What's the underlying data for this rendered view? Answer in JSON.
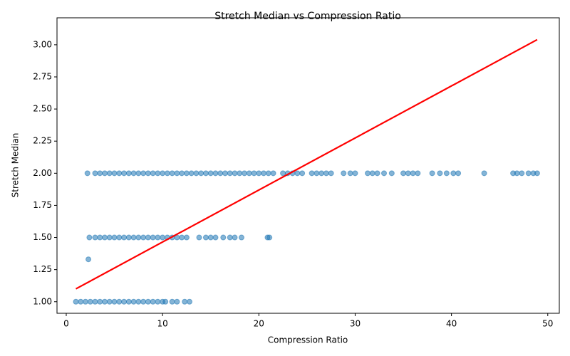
{
  "chart_data": {
    "type": "scatter",
    "title": "Stretch Median vs Compression Ratio",
    "x_label": "Compression Ratio",
    "y_label": "Stretch Median",
    "color": "#1f77b4",
    "x": [
      1,
      1.5,
      2,
      2.5,
      3,
      3.5,
      4,
      4.5,
      5,
      5.5,
      6,
      6.5,
      7,
      7.5,
      8,
      8.5,
      9,
      9.5,
      10,
      10.3,
      11,
      11.5,
      12.3,
      12.8,
      2.4,
      3,
      3.5,
      4,
      4.5,
      5,
      5.5,
      6,
      6.5,
      7,
      7.5,
      8,
      8.5,
      9,
      9.5,
      10,
      10.5,
      11,
      11.5,
      12,
      12.5,
      13.8,
      14.5,
      15,
      15.5,
      16.3,
      17,
      17.5,
      18.2,
      20.9,
      21.1,
      2.3,
      2.2,
      3,
      3.5,
      4,
      4.5,
      5,
      5.5,
      6,
      6.5,
      7,
      7.5,
      8,
      8.5,
      9,
      9.5,
      10,
      10.5,
      11,
      11.5,
      12,
      12.5,
      13,
      13.5,
      14,
      14.5,
      15,
      15.5,
      16,
      16.5,
      17,
      17.5,
      18,
      18.5,
      19,
      19.5,
      20,
      20.5,
      21,
      21.5,
      22.5,
      23,
      23.5,
      24,
      24.5,
      25.5,
      26,
      26.5,
      27,
      27.5,
      28.8,
      29.5,
      30,
      31.3,
      31.8,
      32.3,
      33,
      33.8,
      35,
      35.5,
      36,
      36.5,
      38,
      38.8,
      39.5,
      40.2,
      40.7,
      43.4,
      46.4,
      46.8,
      47.3,
      48,
      48.5,
      48.9
    ],
    "values": [
      1,
      1,
      1,
      1,
      1,
      1,
      1,
      1,
      1,
      1,
      1,
      1,
      1,
      1,
      1,
      1,
      1,
      1,
      1,
      1,
      1,
      1,
      1,
      1,
      1.5,
      1.5,
      1.5,
      1.5,
      1.5,
      1.5,
      1.5,
      1.5,
      1.5,
      1.5,
      1.5,
      1.5,
      1.5,
      1.5,
      1.5,
      1.5,
      1.5,
      1.5,
      1.5,
      1.5,
      1.5,
      1.5,
      1.5,
      1.5,
      1.5,
      1.5,
      1.5,
      1.5,
      1.5,
      1.5,
      1.5,
      1.33,
      2,
      2,
      2,
      2,
      2,
      2,
      2,
      2,
      2,
      2,
      2,
      2,
      2,
      2,
      2,
      2,
      2,
      2,
      2,
      2,
      2,
      2,
      2,
      2,
      2,
      2,
      2,
      2,
      2,
      2,
      2,
      2,
      2,
      2,
      2,
      2,
      2,
      2,
      2,
      2,
      2,
      2,
      2,
      2,
      2,
      2,
      2,
      2,
      2,
      2,
      2,
      2,
      2,
      2,
      2,
      2,
      2,
      2,
      2,
      2,
      2,
      2,
      2,
      2,
      2,
      2,
      2,
      2,
      2,
      2,
      2,
      2,
      2
    ],
    "trend": {
      "x": [
        1,
        48.9
      ],
      "y": [
        1.1,
        3.04
      ],
      "color": "#ff0000"
    },
    "xlim": [
      -0.96,
      51.2
    ],
    "ylim": [
      0.91,
      3.21
    ],
    "xticks": [
      0,
      10,
      20,
      30,
      40,
      50
    ],
    "yticks": [
      {
        "value": 1,
        "label": "1.00"
      },
      {
        "value": 1.25,
        "label": "1.25"
      },
      {
        "value": 1.5,
        "label": "1.50"
      },
      {
        "value": 1.75,
        "label": "1.75"
      },
      {
        "value": 2,
        "label": "2.00"
      },
      {
        "value": 2.25,
        "label": "2.25"
      },
      {
        "value": 2.5,
        "label": "2.50"
      },
      {
        "value": 2.75,
        "label": "2.75"
      },
      {
        "value": 3,
        "label": "3.00"
      }
    ]
  }
}
